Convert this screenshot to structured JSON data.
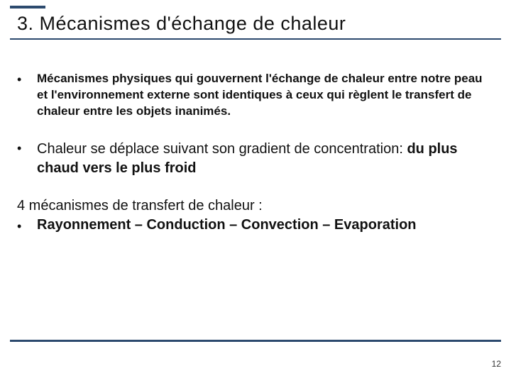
{
  "colors": {
    "accent": "#2c4a6e",
    "background": "#ffffff",
    "text": "#111111"
  },
  "title": "3. Mécanismes d'échange de chaleur",
  "bullets": {
    "b1": "Mécanismes physiques qui gouvernent l'échange de chaleur entre notre peau et l'environnement externe sont identiques à ceux qui règlent le transfert de chaleur entre les objets inanimés.",
    "b2_part1": "Chaleur se déplace suivant son gradient de concentration: ",
    "b2_part2": "du plus chaud vers le plus froid"
  },
  "intro": "4 mécanismes de transfert de chaleur :",
  "mechanisms": "Rayonnement – Conduction – Convection – Evaporation",
  "page_number": "12"
}
